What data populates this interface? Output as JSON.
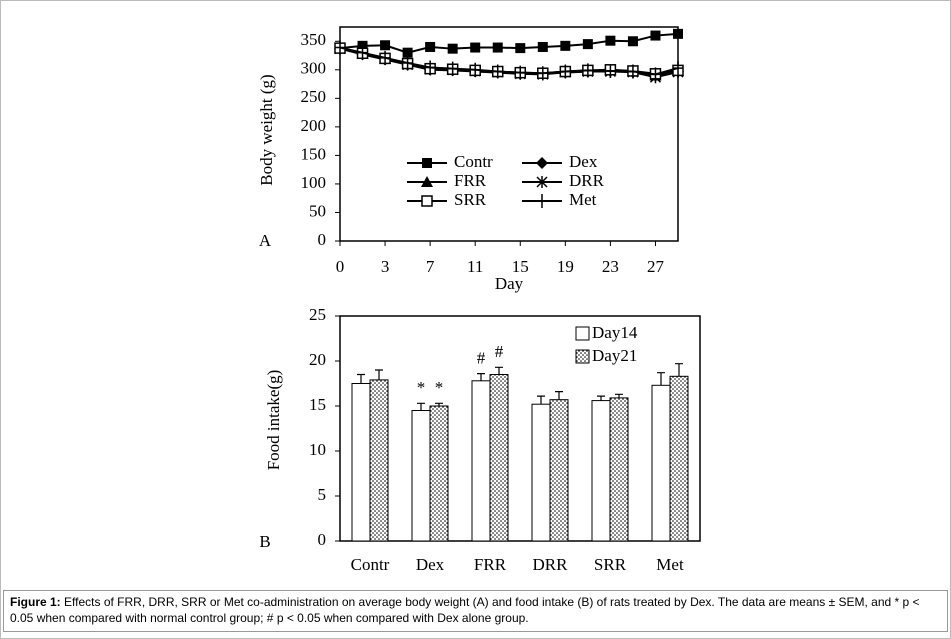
{
  "chart_data": [
    {
      "type": "line",
      "panel": "A",
      "xlabel": "Day",
      "ylabel": "Body weight (g)",
      "categories": [
        "0",
        null,
        "3",
        null,
        "7",
        null,
        "11",
        null,
        "15",
        null,
        "19",
        null,
        "23",
        null,
        "27",
        null
      ],
      "ylim": [
        0,
        375
      ],
      "yticks": [
        0,
        50,
        100,
        150,
        200,
        250,
        300,
        350
      ],
      "series": [
        {
          "name": "Contr",
          "color": "#000000",
          "marker": "square-filled",
          "values": [
            338,
            342,
            343,
            330,
            340,
            337,
            339,
            339,
            338,
            340,
            342,
            345,
            351,
            350,
            360,
            363
          ]
        },
        {
          "name": "Dex",
          "color": "#000000",
          "marker": "diamond-filled",
          "values": [
            337,
            327,
            318,
            309,
            300,
            299,
            297,
            295,
            293,
            293,
            295,
            297,
            298,
            296,
            291,
            297
          ]
        },
        {
          "name": "FRR",
          "color": "#000000",
          "marker": "triangle-filled",
          "values": [
            338,
            328,
            319,
            310,
            302,
            301,
            298,
            296,
            294,
            294,
            296,
            298,
            299,
            297,
            290,
            298
          ]
        },
        {
          "name": "DRR",
          "color": "#000000",
          "marker": "asterisk",
          "values": [
            337,
            329,
            320,
            309,
            301,
            300,
            298,
            296,
            293,
            292,
            296,
            297,
            297,
            296,
            287,
            296
          ]
        },
        {
          "name": "SRR",
          "color": "#000000",
          "marker": "square-open",
          "values": [
            338,
            329,
            320,
            311,
            302,
            301,
            299,
            297,
            295,
            294,
            297,
            299,
            300,
            298,
            293,
            299
          ]
        },
        {
          "name": "Met",
          "color": "#000000",
          "marker": "plus",
          "values": [
            339,
            330,
            321,
            312,
            304,
            302,
            300,
            297,
            295,
            294,
            297,
            299,
            298,
            297,
            292,
            303
          ]
        }
      ]
    },
    {
      "type": "bar",
      "panel": "B",
      "ylabel": "Food intake(g)",
      "categories": [
        "Contr",
        "Dex",
        "FRR",
        "DRR",
        "SRR",
        "Met"
      ],
      "ylim": [
        0,
        25
      ],
      "yticks": [
        0,
        5,
        10,
        15,
        20,
        25
      ],
      "series": [
        {
          "name": "Day14",
          "color": "#ffffff",
          "pattern": "none",
          "values": [
            17.5,
            14.5,
            17.8,
            15.2,
            15.6,
            17.3
          ],
          "errors": [
            1.0,
            0.8,
            0.8,
            0.9,
            0.5,
            1.4
          ],
          "annotations": [
            null,
            "*",
            "#",
            null,
            null,
            null
          ]
        },
        {
          "name": "Day21",
          "color": "#ffffff",
          "pattern": "dots",
          "values": [
            17.9,
            15.0,
            18.5,
            15.7,
            15.9,
            18.3
          ],
          "errors": [
            1.1,
            0.3,
            0.8,
            0.9,
            0.4,
            1.4
          ],
          "annotations": [
            null,
            "*",
            "#",
            null,
            null,
            null
          ]
        }
      ]
    }
  ],
  "caption": {
    "label": "Figure 1:",
    "text": "Effects of FRR, DRR, SRR or Met co-administration on average body weight (A) and food intake (B) of rats treated by Dex. The data are means ± SEM, and * p < 0.05 when compared with normal control group; # p < 0.05 when compared with Dex alone group."
  }
}
